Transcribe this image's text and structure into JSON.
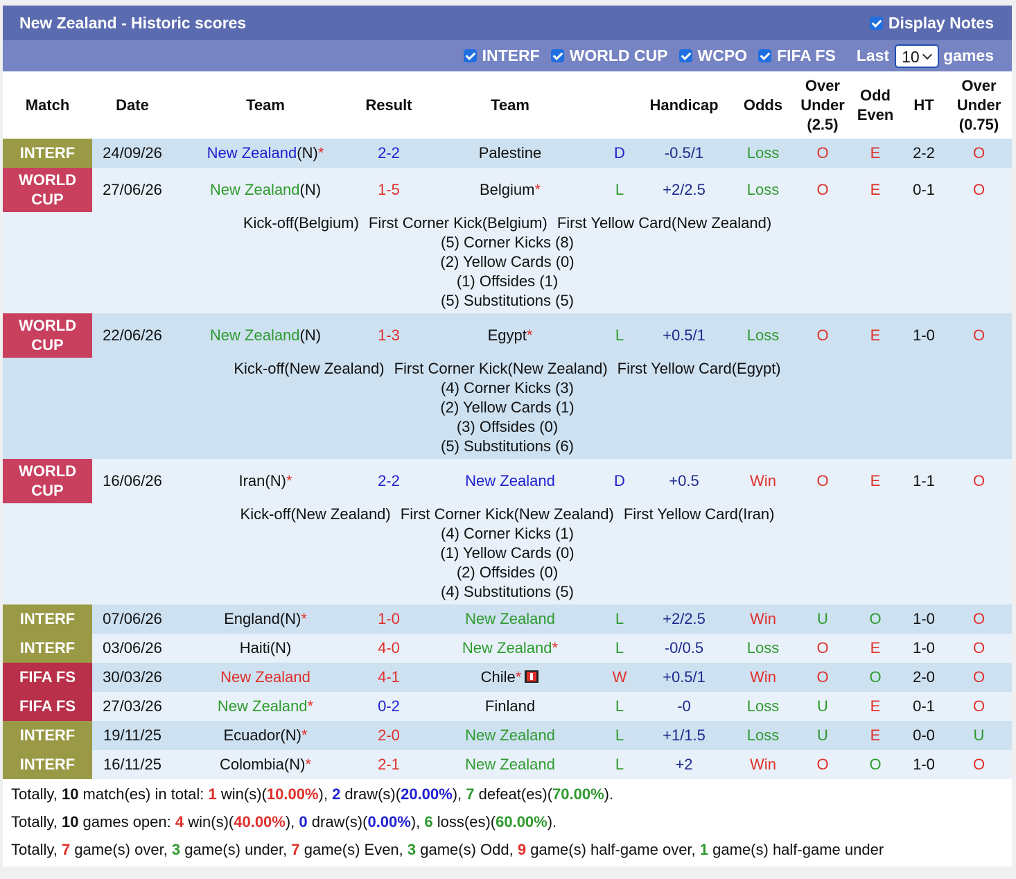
{
  "header": {
    "title": "New Zealand - Historic scores",
    "display_notes": "Display Notes",
    "filters": [
      "INTERF",
      "WORLD CUP",
      "WCPO",
      "FIFA FS"
    ],
    "last_label": "Last",
    "last_value": "10",
    "games_label": "games"
  },
  "table": {
    "columns": [
      [
        "Match"
      ],
      [
        "Date"
      ],
      [
        "Team"
      ],
      [
        "Result"
      ],
      [
        "Team"
      ],
      [],
      [
        "Handicap"
      ],
      [
        "Odds"
      ],
      [
        "Over",
        "Under",
        "(2.5)"
      ],
      [
        "Odd",
        "Even"
      ],
      [
        "HT"
      ],
      [
        "Over",
        "Under",
        "(0.75)"
      ]
    ],
    "rows": [
      {
        "match": {
          "text": "INTERF",
          "bg": "#9a9a46"
        },
        "date": "24/09/26",
        "home": {
          "name": "New Zealand",
          "suffix": "(N)",
          "mark": "*",
          "color": "#1f1fd1"
        },
        "result": {
          "text": "2-2",
          "color": "#1f1fd1"
        },
        "away": {
          "name": "Palestine",
          "color": "#111111"
        },
        "outcome": {
          "text": "D",
          "color": "#1f1fd1"
        },
        "handicap": "-0.5/1",
        "odds": {
          "text": "Loss",
          "color": "#2e9a2e"
        },
        "ou": {
          "text": "O",
          "color": "#e0302b"
        },
        "oe": {
          "text": "E",
          "color": "#e0302b"
        },
        "ht": "2-2",
        "ou2": {
          "text": "O",
          "color": "#e0302b"
        }
      },
      {
        "match": {
          "text": "WORLD CUP",
          "bg": "#c8405e"
        },
        "date": "27/06/26",
        "home": {
          "name": "New Zealand",
          "suffix": "(N)",
          "color": "#2e9a2e"
        },
        "result": {
          "text": "1-5",
          "color": "#e0302b"
        },
        "away": {
          "name": "Belgium",
          "mark": "*",
          "color": "#111111"
        },
        "outcome": {
          "text": "L",
          "color": "#2e9a2e"
        },
        "handicap": "+2/2.5",
        "odds": {
          "text": "Loss",
          "color": "#2e9a2e"
        },
        "ou": {
          "text": "O",
          "color": "#e0302b"
        },
        "oe": {
          "text": "E",
          "color": "#e0302b"
        },
        "ht": "0-1",
        "ou2": {
          "text": "O",
          "color": "#e0302b"
        },
        "notes": {
          "events": [
            "Kick-off(Belgium)",
            "First Corner Kick(Belgium)",
            "First Yellow Card(New Zealand)"
          ],
          "stats": [
            "(5) Corner Kicks (8)",
            "(2) Yellow Cards (0)",
            "(1) Offsides (1)",
            "(5) Substitutions (5)"
          ]
        }
      },
      {
        "match": {
          "text": "WORLD CUP",
          "bg": "#c8405e"
        },
        "date": "22/06/26",
        "home": {
          "name": "New Zealand",
          "suffix": "(N)",
          "color": "#2e9a2e"
        },
        "result": {
          "text": "1-3",
          "color": "#e0302b"
        },
        "away": {
          "name": "Egypt",
          "mark": "*",
          "color": "#111111"
        },
        "outcome": {
          "text": "L",
          "color": "#2e9a2e"
        },
        "handicap": "+0.5/1",
        "odds": {
          "text": "Loss",
          "color": "#2e9a2e"
        },
        "ou": {
          "text": "O",
          "color": "#e0302b"
        },
        "oe": {
          "text": "E",
          "color": "#e0302b"
        },
        "ht": "1-0",
        "ou2": {
          "text": "O",
          "color": "#e0302b"
        },
        "notes": {
          "events": [
            "Kick-off(New Zealand)",
            "First Corner Kick(New Zealand)",
            "First Yellow Card(Egypt)"
          ],
          "stats": [
            "(4) Corner Kicks (3)",
            "(2) Yellow Cards (1)",
            "(3) Offsides (0)",
            "(5) Substitutions (6)"
          ]
        }
      },
      {
        "match": {
          "text": "WORLD CUP",
          "bg": "#c8405e"
        },
        "date": "16/06/26",
        "home": {
          "name": "Iran",
          "suffix": "(N)",
          "mark": "*",
          "color": "#111111"
        },
        "result": {
          "text": "2-2",
          "color": "#1f1fd1"
        },
        "away": {
          "name": "New Zealand",
          "color": "#1f1fd1"
        },
        "outcome": {
          "text": "D",
          "color": "#1f1fd1"
        },
        "handicap": "+0.5",
        "odds": {
          "text": "Win",
          "color": "#e0302b"
        },
        "ou": {
          "text": "O",
          "color": "#e0302b"
        },
        "oe": {
          "text": "E",
          "color": "#e0302b"
        },
        "ht": "1-1",
        "ou2": {
          "text": "O",
          "color": "#e0302b"
        },
        "notes": {
          "events": [
            "Kick-off(New Zealand)",
            "First Corner Kick(New Zealand)",
            "First Yellow Card(Iran)"
          ],
          "stats": [
            "(4) Corner Kicks (1)",
            "(1) Yellow Cards (0)",
            "(2) Offsides (0)",
            "(4) Substitutions (5)"
          ]
        }
      },
      {
        "match": {
          "text": "INTERF",
          "bg": "#9a9a46"
        },
        "date": "07/06/26",
        "home": {
          "name": "England",
          "suffix": "(N)",
          "mark": "*",
          "color": "#111111"
        },
        "result": {
          "text": "1-0",
          "color": "#e0302b"
        },
        "away": {
          "name": "New Zealand",
          "color": "#2e9a2e"
        },
        "outcome": {
          "text": "L",
          "color": "#2e9a2e"
        },
        "handicap": "+2/2.5",
        "odds": {
          "text": "Win",
          "color": "#e0302b"
        },
        "ou": {
          "text": "U",
          "color": "#2e9a2e"
        },
        "oe": {
          "text": "O",
          "color": "#2e9a2e"
        },
        "ht": "1-0",
        "ou2": {
          "text": "O",
          "color": "#e0302b"
        }
      },
      {
        "match": {
          "text": "INTERF",
          "bg": "#9a9a46"
        },
        "date": "03/06/26",
        "home": {
          "name": "Haiti",
          "suffix": "(N)",
          "color": "#111111"
        },
        "result": {
          "text": "4-0",
          "color": "#e0302b"
        },
        "away": {
          "name": "New Zealand",
          "mark": "*",
          "color": "#2e9a2e"
        },
        "outcome": {
          "text": "L",
          "color": "#2e9a2e"
        },
        "handicap": "-0/0.5",
        "odds": {
          "text": "Loss",
          "color": "#2e9a2e"
        },
        "ou": {
          "text": "O",
          "color": "#e0302b"
        },
        "oe": {
          "text": "E",
          "color": "#e0302b"
        },
        "ht": "1-0",
        "ou2": {
          "text": "O",
          "color": "#e0302b"
        }
      },
      {
        "match": {
          "text": "FIFA FS",
          "bg": "#b8304a"
        },
        "date": "30/03/26",
        "home": {
          "name": "New Zealand",
          "color": "#e0302b"
        },
        "result": {
          "text": "4-1",
          "color": "#e0302b"
        },
        "away": {
          "name": "Chile",
          "mark": "*",
          "color": "#111111",
          "red_card": true
        },
        "outcome": {
          "text": "W",
          "color": "#e0302b"
        },
        "handicap": "+0.5/1",
        "odds": {
          "text": "Win",
          "color": "#e0302b"
        },
        "ou": {
          "text": "O",
          "color": "#e0302b"
        },
        "oe": {
          "text": "O",
          "color": "#2e9a2e"
        },
        "ht": "2-0",
        "ou2": {
          "text": "O",
          "color": "#e0302b"
        }
      },
      {
        "match": {
          "text": "FIFA FS",
          "bg": "#b8304a"
        },
        "date": "27/03/26",
        "home": {
          "name": "New Zealand",
          "mark": "*",
          "color": "#2e9a2e"
        },
        "result": {
          "text": "0-2",
          "color": "#1f1fd1"
        },
        "away": {
          "name": "Finland",
          "color": "#111111"
        },
        "outcome": {
          "text": "L",
          "color": "#2e9a2e"
        },
        "handicap": "-0",
        "odds": {
          "text": "Loss",
          "color": "#2e9a2e"
        },
        "ou": {
          "text": "U",
          "color": "#2e9a2e"
        },
        "oe": {
          "text": "E",
          "color": "#e0302b"
        },
        "ht": "0-1",
        "ou2": {
          "text": "O",
          "color": "#e0302b"
        }
      },
      {
        "match": {
          "text": "INTERF",
          "bg": "#9a9a46"
        },
        "date": "19/11/25",
        "home": {
          "name": "Ecuador",
          "suffix": "(N)",
          "mark": "*",
          "color": "#111111"
        },
        "result": {
          "text": "2-0",
          "color": "#e0302b"
        },
        "away": {
          "name": "New Zealand",
          "color": "#2e9a2e"
        },
        "outcome": {
          "text": "L",
          "color": "#2e9a2e"
        },
        "handicap": "+1/1.5",
        "odds": {
          "text": "Loss",
          "color": "#2e9a2e"
        },
        "ou": {
          "text": "U",
          "color": "#2e9a2e"
        },
        "oe": {
          "text": "E",
          "color": "#e0302b"
        },
        "ht": "0-0",
        "ou2": {
          "text": "U",
          "color": "#2e9a2e"
        }
      },
      {
        "match": {
          "text": "INTERF",
          "bg": "#9a9a46"
        },
        "date": "16/11/25",
        "home": {
          "name": "Colombia",
          "suffix": "(N)",
          "mark": "*",
          "color": "#111111"
        },
        "result": {
          "text": "2-1",
          "color": "#e0302b"
        },
        "away": {
          "name": "New Zealand",
          "color": "#2e9a2e"
        },
        "outcome": {
          "text": "L",
          "color": "#2e9a2e"
        },
        "handicap": "+2",
        "odds": {
          "text": "Win",
          "color": "#e0302b"
        },
        "ou": {
          "text": "O",
          "color": "#e0302b"
        },
        "oe": {
          "text": "O",
          "color": "#2e9a2e"
        },
        "ht": "1-0",
        "ou2": {
          "text": "O",
          "color": "#e0302b"
        }
      }
    ]
  },
  "summary": [
    [
      {
        "text": "Totally, "
      },
      {
        "text": "10",
        "color": "#111111"
      },
      {
        "text": " match(es) in total: "
      },
      {
        "text": "1",
        "color": "#e0302b"
      },
      {
        "text": " win(s)("
      },
      {
        "text": "10.00%",
        "color": "#e0302b"
      },
      {
        "text": "), "
      },
      {
        "text": "2",
        "color": "#1f1fd1"
      },
      {
        "text": " draw(s)("
      },
      {
        "text": "20.00%",
        "color": "#1f1fd1"
      },
      {
        "text": "), "
      },
      {
        "text": "7",
        "color": "#2e9a2e"
      },
      {
        "text": " defeat(es)("
      },
      {
        "text": "70.00%",
        "color": "#2e9a2e"
      },
      {
        "text": ")."
      }
    ],
    [
      {
        "text": "Totally, "
      },
      {
        "text": "10",
        "color": "#111111"
      },
      {
        "text": " games open: "
      },
      {
        "text": "4",
        "color": "#e0302b"
      },
      {
        "text": " win(s)("
      },
      {
        "text": "40.00%",
        "color": "#e0302b"
      },
      {
        "text": "), "
      },
      {
        "text": "0",
        "color": "#1f1fd1"
      },
      {
        "text": " draw(s)("
      },
      {
        "text": "0.00%",
        "color": "#1f1fd1"
      },
      {
        "text": "), "
      },
      {
        "text": "6",
        "color": "#2e9a2e"
      },
      {
        "text": " loss(es)("
      },
      {
        "text": "60.00%",
        "color": "#2e9a2e"
      },
      {
        "text": ")."
      }
    ],
    [
      {
        "text": "Totally, "
      },
      {
        "text": "7",
        "color": "#e0302b"
      },
      {
        "text": " game(s) over, "
      },
      {
        "text": "3",
        "color": "#2e9a2e"
      },
      {
        "text": " game(s) under, "
      },
      {
        "text": "7",
        "color": "#e0302b"
      },
      {
        "text": " game(s) Even, "
      },
      {
        "text": "3",
        "color": "#2e9a2e"
      },
      {
        "text": " game(s) Odd, "
      },
      {
        "text": "9",
        "color": "#e0302b"
      },
      {
        "text": " game(s) half-game over, "
      },
      {
        "text": "1",
        "color": "#2e9a2e"
      },
      {
        "text": " game(s) half-game under"
      }
    ]
  ]
}
